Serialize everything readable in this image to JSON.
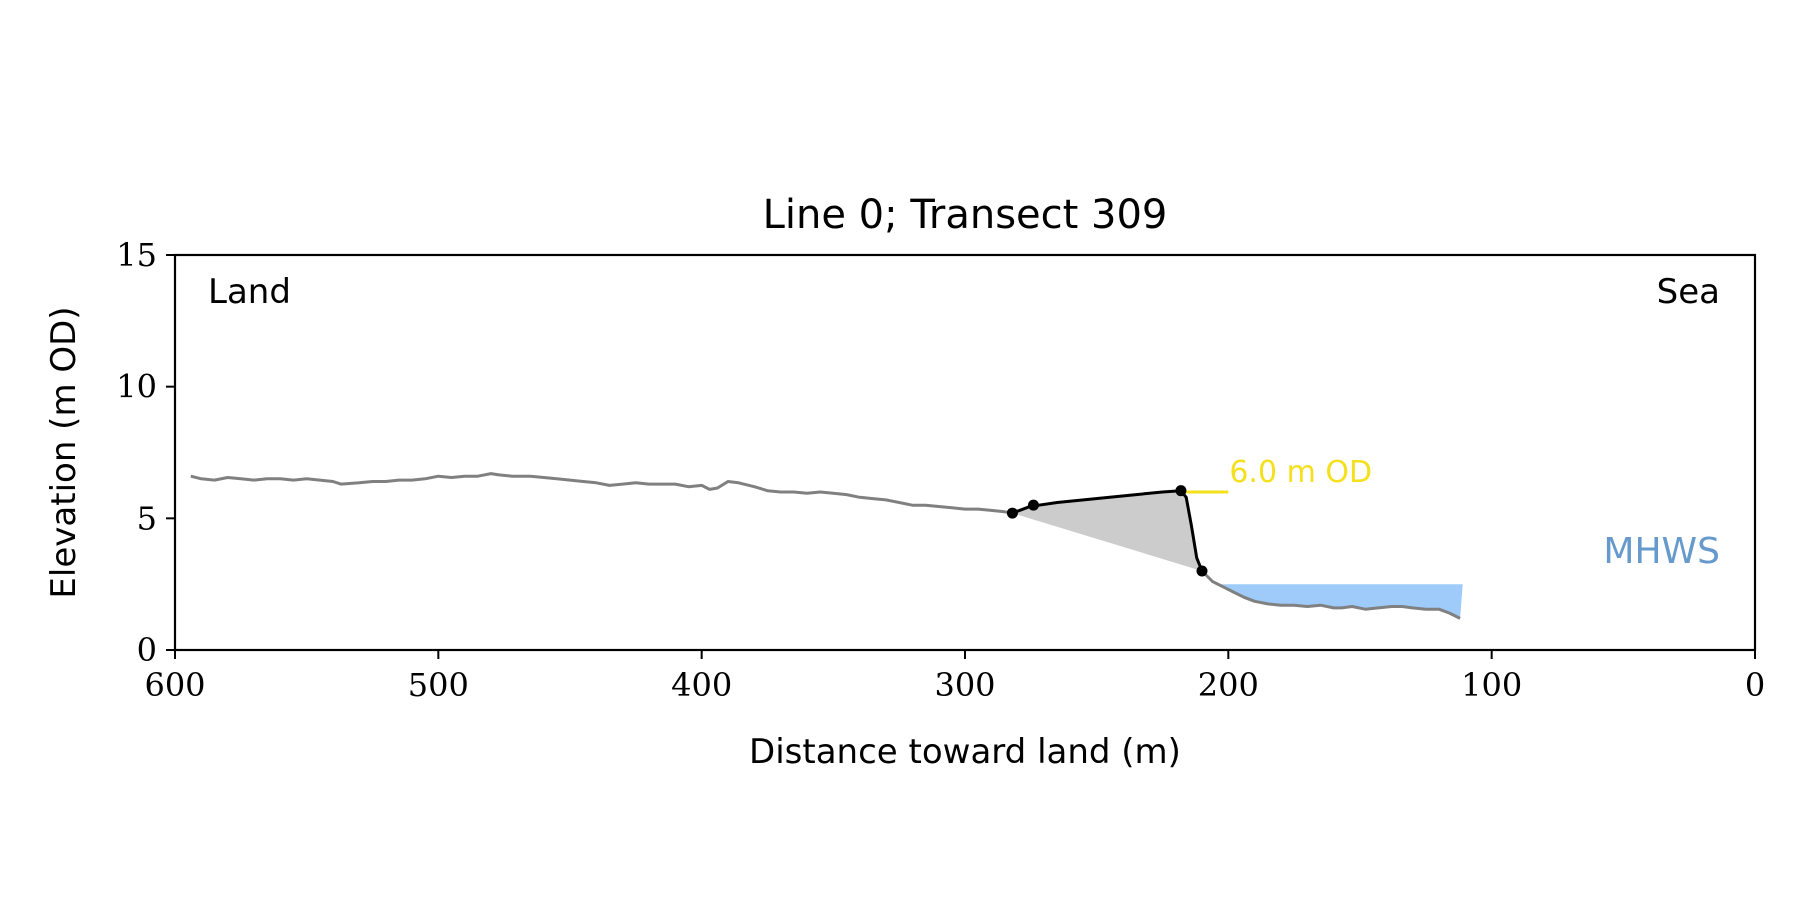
{
  "chart_data": {
    "type": "line",
    "title": "Line 0; Transect 309",
    "xlabel": "Distance toward land (m)",
    "ylabel": "Elevation (m OD)",
    "xlim": [
      600,
      0
    ],
    "ylim": [
      0,
      15
    ],
    "x_ticks": [
      "600",
      "500",
      "400",
      "300",
      "200",
      "100",
      "0"
    ],
    "y_ticks": [
      "0",
      "5",
      "10",
      "15"
    ],
    "grid": false,
    "annotations": {
      "land_label": "Land",
      "sea_label": "Sea",
      "mhws_label": "MHWS",
      "contour_label": "6.0 m OD"
    },
    "colors": {
      "profile": "#808080",
      "feature": "#000000",
      "fill": "#cccccc",
      "mhws": "#9ecbfa",
      "mhws_text": "#6699cc",
      "contour": "#f5e01e"
    },
    "contour_level": 6.0,
    "mhws_level": 2.5,
    "mhws_x_range": [
      204,
      111
    ],
    "series": [
      {
        "x": [
          594,
          590,
          585,
          580,
          575,
          570,
          565,
          560,
          555,
          550,
          545,
          540,
          537,
          530,
          525,
          520,
          515,
          510,
          505,
          500,
          495,
          490,
          485,
          480,
          477,
          472,
          465,
          460,
          455,
          450,
          445,
          440,
          435,
          430,
          425,
          420,
          415,
          410,
          405,
          400,
          397,
          394,
          390,
          386,
          380,
          375,
          370,
          365,
          360,
          355,
          350,
          345,
          340,
          335,
          330,
          325,
          320,
          315,
          310,
          305,
          300,
          295,
          290,
          285,
          282
        ],
        "y": [
          6.6,
          6.5,
          6.45,
          6.55,
          6.5,
          6.45,
          6.5,
          6.5,
          6.45,
          6.5,
          6.45,
          6.4,
          6.3,
          6.35,
          6.4,
          6.4,
          6.45,
          6.45,
          6.5,
          6.6,
          6.55,
          6.6,
          6.6,
          6.7,
          6.65,
          6.6,
          6.6,
          6.55,
          6.5,
          6.45,
          6.4,
          6.35,
          6.25,
          6.3,
          6.35,
          6.3,
          6.3,
          6.3,
          6.2,
          6.25,
          6.1,
          6.15,
          6.4,
          6.35,
          6.2,
          6.05,
          6.0,
          6.0,
          5.95,
          6.0,
          5.95,
          5.9,
          5.8,
          5.75,
          5.7,
          5.6,
          5.5,
          5.5,
          5.45,
          5.4,
          5.35,
          5.35,
          5.3,
          5.25,
          5.2
        ]
      },
      {
        "x": [
          210,
          206,
          202,
          198,
          194,
          190,
          185,
          180,
          175,
          170,
          165,
          160,
          157,
          153,
          148,
          143,
          138,
          134,
          130,
          125,
          120,
          116,
          112
        ],
        "y": [
          3.0,
          2.6,
          2.4,
          2.2,
          2.0,
          1.85,
          1.75,
          1.7,
          1.7,
          1.65,
          1.7,
          1.6,
          1.6,
          1.65,
          1.55,
          1.6,
          1.65,
          1.65,
          1.6,
          1.55,
          1.55,
          1.4,
          1.2
        ]
      },
      {
        "x": [
          282,
          274,
          272,
          265,
          255,
          245,
          235,
          225,
          218,
          216,
          214,
          212,
          210
        ],
        "y": [
          5.2,
          5.5,
          5.5,
          5.6,
          5.7,
          5.8,
          5.9,
          6.0,
          6.05,
          5.8,
          4.7,
          3.5,
          3.0
        ],
        "markers": [
          {
            "x": 282,
            "y": 5.2
          },
          {
            "x": 274,
            "y": 5.5
          },
          {
            "x": 218,
            "y": 6.05
          },
          {
            "x": 210,
            "y": 3.0
          }
        ]
      }
    ]
  }
}
